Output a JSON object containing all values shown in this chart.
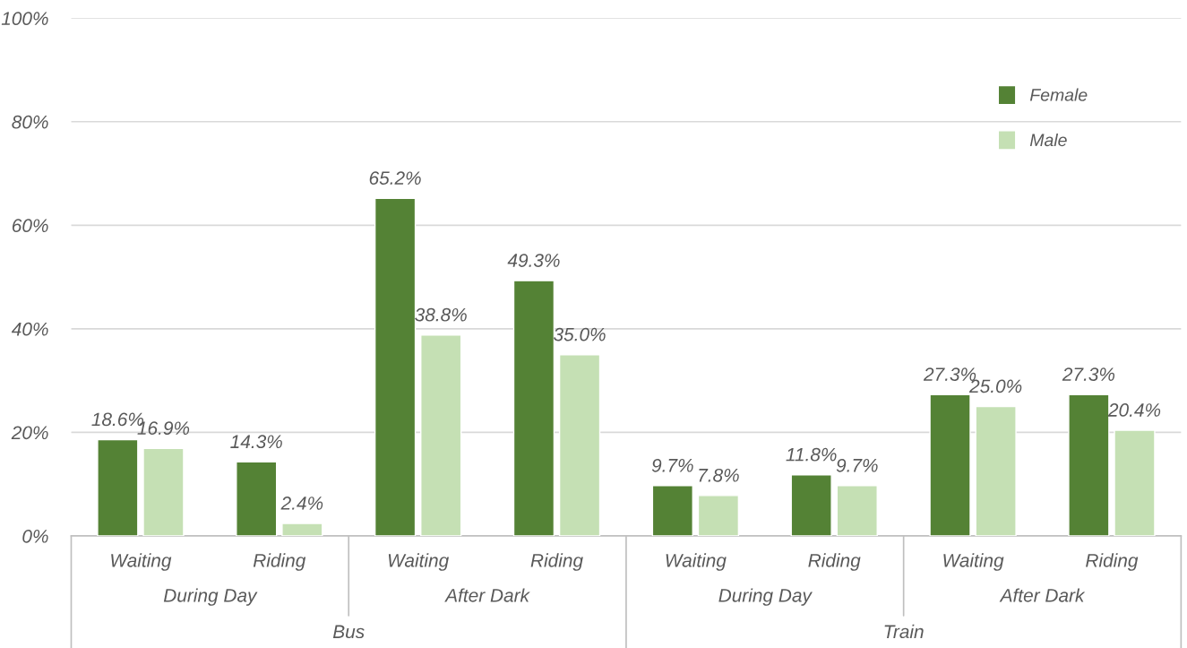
{
  "chart_data": {
    "type": "bar",
    "categories": [
      "Waiting",
      "Riding",
      "Waiting",
      "Riding",
      "Waiting",
      "Riding",
      "Waiting",
      "Riding"
    ],
    "series": [
      {
        "name": "Female",
        "color": "#548235",
        "values": [
          18.6,
          14.3,
          65.2,
          49.3,
          9.7,
          11.8,
          27.3,
          27.3
        ]
      },
      {
        "name": "Male",
        "color": "#c5e0b4",
        "values": [
          16.9,
          2.4,
          38.8,
          35.0,
          7.8,
          9.7,
          25.0,
          20.4
        ]
      }
    ],
    "value_labels": [
      [
        "18.6%",
        "14.3%",
        "65.2%",
        "49.3%",
        "9.7%",
        "11.8%",
        "27.3%",
        "27.3%"
      ],
      [
        "16.9%",
        "2.4%",
        "38.8%",
        "35.0%",
        "7.8%",
        "9.7%",
        "25.0%",
        "20.4%"
      ]
    ],
    "annotations": [
      "During Day",
      "After Dark",
      "During Day",
      "After Dark",
      "Bus",
      "Train"
    ],
    "ylim": [
      0,
      100
    ],
    "yticks": [
      {
        "value": 0,
        "label": "0%"
      },
      {
        "value": 20,
        "label": "20%"
      },
      {
        "value": 40,
        "label": "40%"
      },
      {
        "value": 60,
        "label": "60%"
      },
      {
        "value": 80,
        "label": "80%"
      },
      {
        "value": 100,
        "label": "100%"
      }
    ],
    "grid": "y",
    "legend": "top right"
  }
}
